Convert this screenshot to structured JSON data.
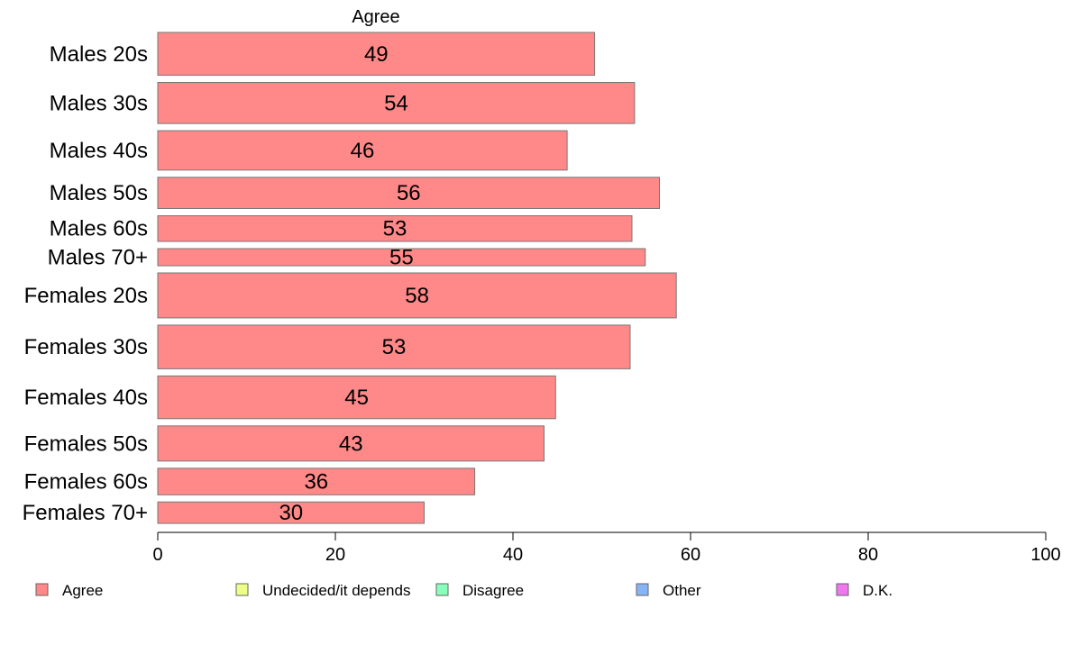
{
  "chart_data": {
    "type": "bar",
    "orientation": "horizontal",
    "title": "Agree",
    "categories": [
      "Males 20s",
      "Males 30s",
      "Males 40s",
      "Males 50s",
      "Males 60s",
      "Males 70+",
      "Females 20s",
      "Females 30s",
      "Females 40s",
      "Females 50s",
      "Females 60s",
      "Females 70+"
    ],
    "series": [
      {
        "name": "Agree",
        "values": [
          49,
          54,
          46,
          56,
          53,
          55,
          58,
          53,
          45,
          43,
          36,
          30
        ],
        "color": "#ff8888"
      }
    ],
    "exact_extents": [
      49.2,
      53.7,
      46.1,
      56.5,
      53.4,
      54.9,
      58.4,
      53.2,
      44.8,
      43.5,
      35.7,
      30.0
    ],
    "relative_group_sizes": [
      1.0,
      0.96,
      0.92,
      0.73,
      0.6,
      0.4,
      1.05,
      1.02,
      1.0,
      0.82,
      0.62,
      0.5
    ],
    "xlim": [
      0,
      100
    ],
    "xticks": [
      0,
      20,
      40,
      60,
      80,
      100
    ],
    "xlabel": "",
    "ylabel": "",
    "grid": false,
    "legend_position": "bottom",
    "legend": [
      {
        "label": "Agree",
        "color": "#ff8888"
      },
      {
        "label": "Undecided/it depends",
        "color": "#eeff88"
      },
      {
        "label": "Disagree",
        "color": "#88ffbb"
      },
      {
        "label": "Other",
        "color": "#88b4f5"
      },
      {
        "label": "D.K.",
        "color": "#ee77ee"
      }
    ]
  }
}
